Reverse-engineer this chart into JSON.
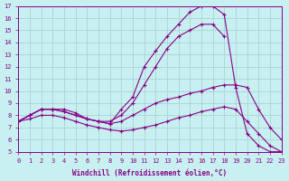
{
  "xlabel": "Windchill (Refroidissement éolien,°C)",
  "bg_color": "#c8f0f0",
  "grid_color": "#a8d4d4",
  "line_color": "#880088",
  "xlim": [
    0,
    23
  ],
  "ylim": [
    5,
    17
  ],
  "xticks": [
    0,
    1,
    2,
    3,
    4,
    5,
    6,
    7,
    8,
    9,
    10,
    11,
    12,
    13,
    14,
    15,
    16,
    17,
    18,
    19,
    20,
    21,
    22,
    23
  ],
  "yticks": [
    5,
    6,
    7,
    8,
    9,
    10,
    11,
    12,
    13,
    14,
    15,
    16,
    17
  ],
  "curve1_x": [
    0,
    1,
    2,
    3,
    4,
    5,
    6,
    7,
    8,
    9,
    10,
    11,
    12,
    13,
    14,
    15,
    16,
    17,
    18,
    19,
    20,
    21,
    22,
    23
  ],
  "curve1_y": [
    7.5,
    8.0,
    8.5,
    8.5,
    8.5,
    8.2,
    7.7,
    7.5,
    7.3,
    8.5,
    9.5,
    12.0,
    13.3,
    14.5,
    15.5,
    16.5,
    17.0,
    17.0,
    16.3,
    10.3,
    6.5,
    5.5,
    5.0,
    5.0
  ],
  "curve2_x": [
    0,
    1,
    2,
    3,
    4,
    5,
    6,
    7,
    8,
    9,
    10,
    11,
    12,
    13,
    14,
    15,
    16,
    17,
    18
  ],
  "curve2_y": [
    7.5,
    8.0,
    8.5,
    8.5,
    8.3,
    8.0,
    7.7,
    7.5,
    7.5,
    8.0,
    9.0,
    10.5,
    12.0,
    13.5,
    14.5,
    15.0,
    15.5,
    15.5,
    14.5
  ],
  "curve3_x": [
    0,
    1,
    2,
    3,
    4,
    5,
    6,
    7,
    8,
    9,
    10,
    11,
    12,
    13,
    14,
    15,
    16,
    17,
    18,
    19,
    20,
    21,
    22,
    23
  ],
  "curve3_y": [
    7.5,
    8.0,
    8.5,
    8.5,
    8.3,
    8.0,
    7.7,
    7.5,
    7.3,
    7.5,
    8.0,
    8.5,
    9.0,
    9.3,
    9.5,
    9.8,
    10.0,
    10.3,
    10.5,
    10.5,
    10.3,
    8.5,
    7.0,
    6.0
  ],
  "curve4_x": [
    0,
    1,
    2,
    3,
    4,
    5,
    6,
    7,
    8,
    9,
    10,
    11,
    12,
    13,
    14,
    15,
    16,
    17,
    18,
    19,
    20,
    21,
    22,
    23
  ],
  "curve4_y": [
    7.5,
    7.7,
    8.0,
    8.0,
    7.8,
    7.5,
    7.2,
    7.0,
    6.8,
    6.7,
    6.8,
    7.0,
    7.2,
    7.5,
    7.8,
    8.0,
    8.3,
    8.5,
    8.7,
    8.5,
    7.5,
    6.5,
    5.5,
    5.0
  ]
}
